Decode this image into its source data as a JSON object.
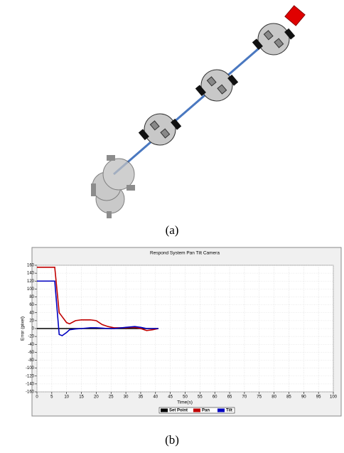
{
  "captions": {
    "a": "(a)",
    "b": "(b)"
  },
  "chart_data": {
    "type": "line",
    "title": "Respond System Pan Tilt Camera",
    "x_label": "Time(s)",
    "y_label": "Error (pixel)",
    "x": [
      0,
      6,
      7.5,
      8.5,
      10,
      11,
      13,
      15,
      18,
      20,
      22,
      24,
      26,
      30,
      33,
      35,
      37,
      39,
      41
    ],
    "series": [
      {
        "name": "Set Point",
        "color": "#000000",
        "values": [
          0,
          0,
          0,
          0,
          0,
          0,
          0,
          0,
          0,
          0,
          0,
          0,
          0,
          0,
          0,
          0,
          0,
          0,
          0
        ]
      },
      {
        "name": "Pan",
        "color": "#c00000",
        "values": [
          155,
          155,
          40,
          30,
          15,
          12,
          20,
          22,
          22,
          20,
          10,
          5,
          2,
          2,
          3,
          0,
          -5,
          -3,
          0
        ]
      },
      {
        "name": "Tilt",
        "color": "#0000c0",
        "values": [
          120,
          120,
          -15,
          -18,
          -10,
          -3,
          -1,
          0,
          2,
          2,
          1,
          0,
          0,
          3,
          5,
          3,
          0,
          0,
          0
        ]
      }
    ],
    "xlim": [
      0,
      100
    ],
    "xticks": [
      0,
      5,
      10,
      15,
      20,
      25,
      30,
      35,
      40,
      45,
      50,
      55,
      60,
      65,
      70,
      75,
      80,
      85,
      90,
      95,
      100
    ],
    "ylim": [
      -160,
      160
    ],
    "yticks": [
      -160,
      -140,
      -120,
      -100,
      -80,
      -60,
      -40,
      -20,
      0,
      20,
      40,
      60,
      80,
      100,
      120,
      140,
      160
    ],
    "grid": true,
    "legend": "bottom"
  }
}
